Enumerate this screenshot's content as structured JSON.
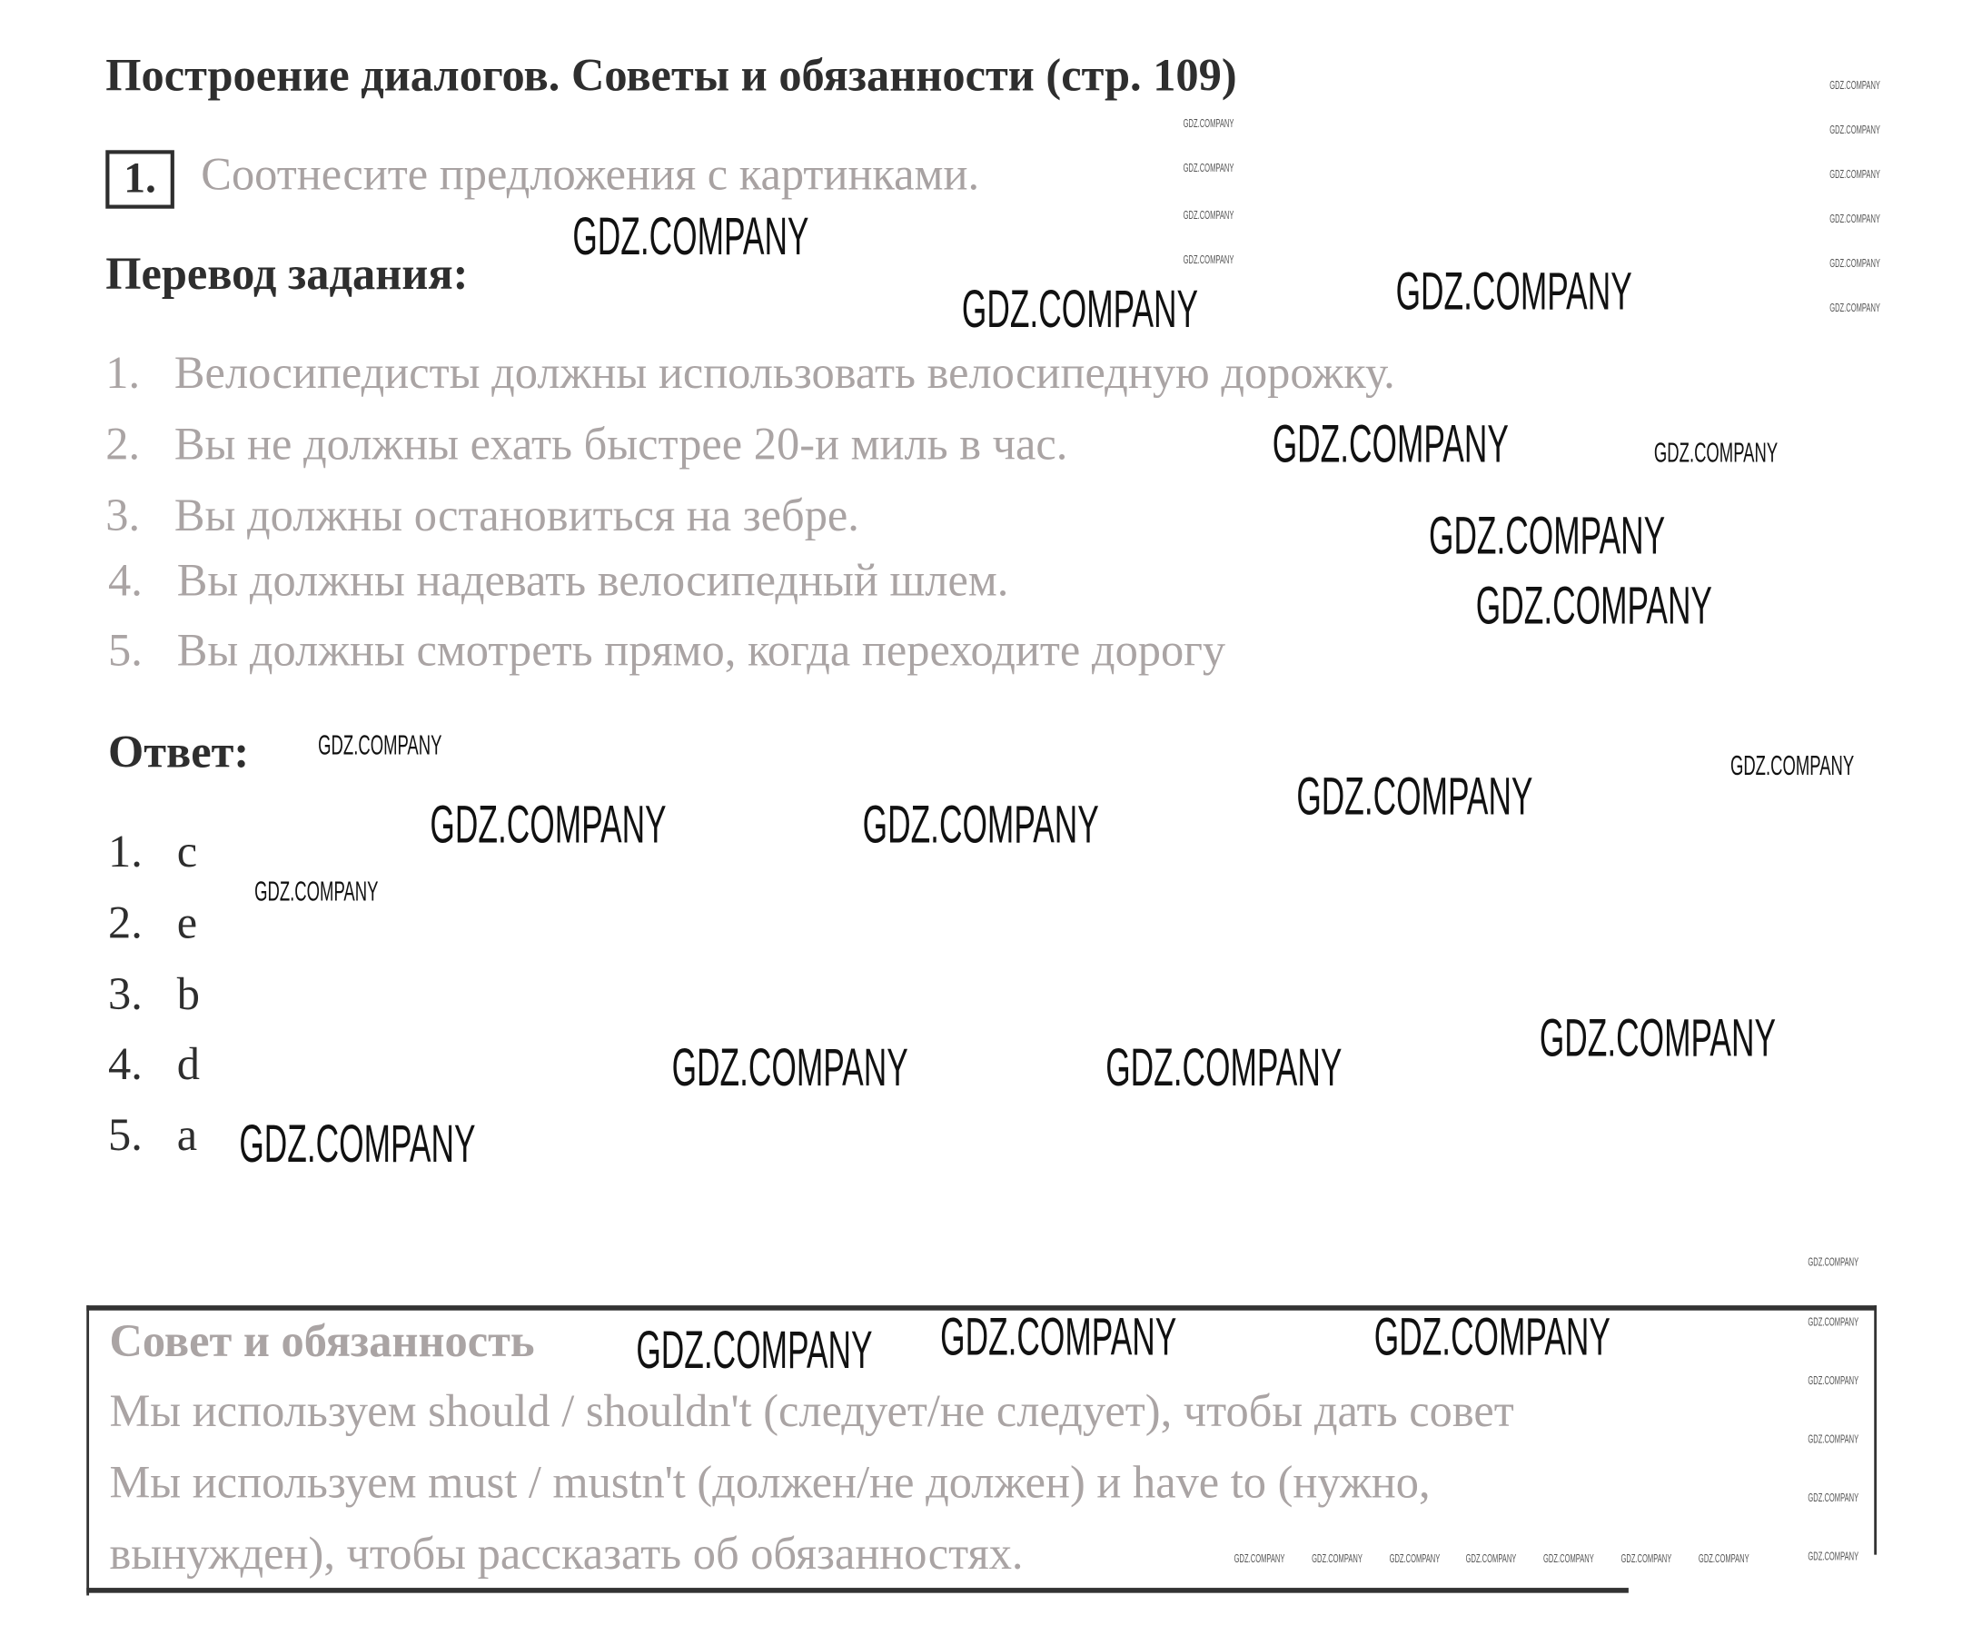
{
  "title": "Построение диалогов. Советы и обязанности (стр. 109)",
  "exercise": {
    "number": "1.",
    "instruction": "Соотнесите предложения с картинками."
  },
  "translation": {
    "heading": "Перевод задания:",
    "items": [
      {
        "n": "1.",
        "text": "Велосипедисты должны использовать велосипедную дорожку."
      },
      {
        "n": "2.",
        "text": "Вы не должны ехать быстрее 20-и миль в час."
      },
      {
        "n": "3.",
        "text": "Вы должны остановиться на зебре."
      },
      {
        "n": "4.",
        "text": "Вы должны надевать велосипедный шлем."
      },
      {
        "n": "5.",
        "text": "Вы должны смотреть прямо, когда переходите дорогу"
      }
    ]
  },
  "answer": {
    "heading": "Ответ:",
    "items": [
      {
        "n": "1.",
        "text": "c"
      },
      {
        "n": "2.",
        "text": "e"
      },
      {
        "n": "3.",
        "text": "b"
      },
      {
        "n": "4.",
        "text": "d"
      },
      {
        "n": "5.",
        "text": "a"
      }
    ]
  },
  "rule_box": {
    "heading": "Совет и обязанность",
    "lines": [
      "Мы используем should / shouldn't (следует/не следует), чтобы дать совет",
      "Мы используем must / mustn't (должен/не должен) и have to (нужно,",
      "вынужден), чтобы рассказать об обязанностях."
    ]
  },
  "watermark": "GDZ.COMPANY"
}
